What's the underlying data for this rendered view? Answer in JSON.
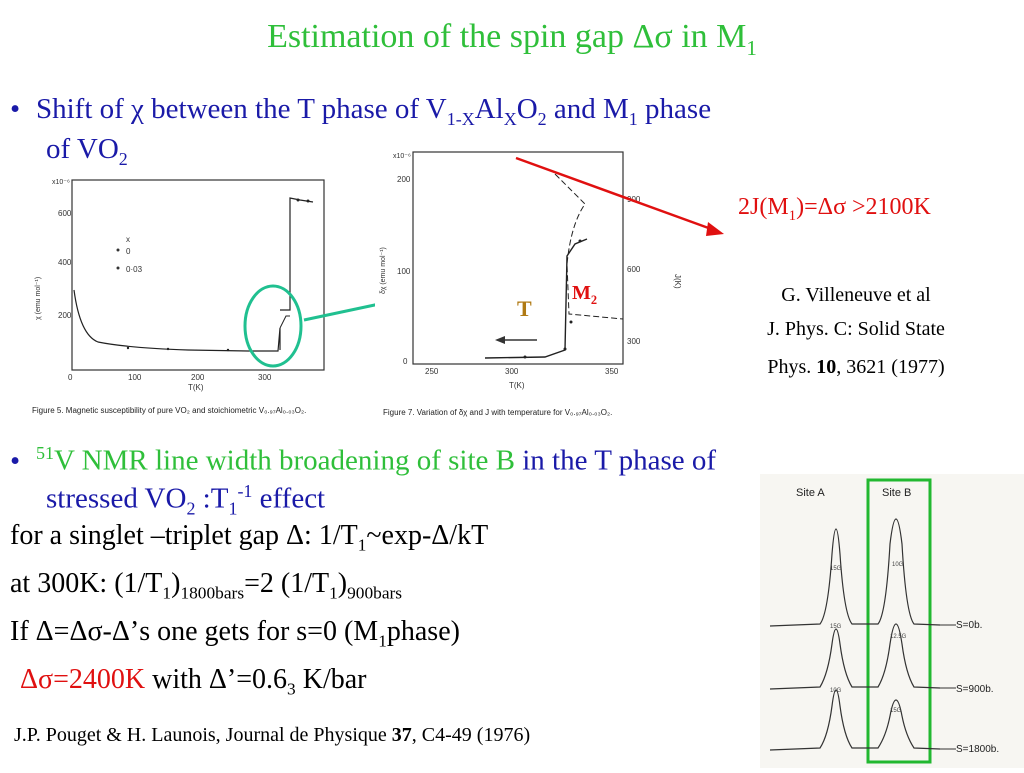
{
  "title": {
    "pre": "Estimation of the spin gap Δσ in M",
    "sub": "1"
  },
  "bullet_dot": "•",
  "bullet1": {
    "a": "Shift of χ between  the T phase of V",
    "sub1": "1-X",
    "b": "Al",
    "sub2": "X",
    "c": "O",
    "sub3": "2",
    "d": " and M",
    "sub4": "1",
    "e": " phase",
    "line2_a": "of  VO",
    "line2_sub": "2"
  },
  "annotation": {
    "a": "2J(M",
    "sub": "1",
    "b": ")=Δσ >2100K"
  },
  "fig1": {
    "y_unit": "x10⁻⁶",
    "y_ticks": [
      "600",
      "400",
      "200"
    ],
    "x_ticks": [
      "0",
      "100",
      "200",
      "300"
    ],
    "xlabel": "T(K)",
    "ylabel": "χ (emu mol⁻¹)",
    "legend": {
      "head": "x",
      "r1": "0",
      "r2": "0·03"
    },
    "caption": "Figure 5. Magnetic susceptibility of pure VO₂ and stoichiometric V₀.₉₇Al₀.₀₃O₂."
  },
  "fig2": {
    "y_unit": "x10⁻⁶",
    "y_ticks": [
      "200",
      "100",
      "0"
    ],
    "x_ticks": [
      "250",
      "300",
      "350"
    ],
    "xlabel": "T(K)",
    "ylabel": "δχ (emu mol⁻¹)",
    "right_label": "J(K)",
    "right_ticks": [
      "900",
      "600",
      "300"
    ],
    "label_T": "T",
    "label_M": "M",
    "label_M_sub": "2",
    "caption": "Figure 7. Variation of δχ and J with temperature for V₀.₉₇Al₀.₀₃O₂."
  },
  "reference1": {
    "l1": "G. Villeneuve et al",
    "l2": "J. Phys. C: Solid State",
    "l3a": "Phys. ",
    "l3b": "10",
    "l3c": ", 3621 (1977)"
  },
  "bullet2": {
    "sup": "51",
    "a": "V NMR line width broadening of site B",
    "b": " in the T phase of",
    "l2a": "stressed VO",
    "l2sub": "2",
    "l2b": " :T",
    "l2sub2": "1",
    "l2sup": "-1",
    "l2c": " effect"
  },
  "line_gap": {
    "a": "for a singlet –triplet gap Δ: 1/T",
    "sub": "1",
    "b": "~exp-Δ/kT"
  },
  "line_300": {
    "a": "at 300K: (1/T",
    "s1": "1",
    "b": ")",
    "s2": "1800bars",
    "c": "=2 (1/T",
    "s3": "1",
    "d": ")",
    "s4": "900bars"
  },
  "line_if": {
    "a": "If Δ=Δσ-Δ’s one gets for s=0 (M",
    "sub": "1",
    "b": "phase)"
  },
  "line_result": {
    "red": "Δσ=2400K",
    "a": " with Δ’=0.6",
    "sub": "3",
    "b": " K/bar"
  },
  "reference2": {
    "a": "J.P. Pouget & H. Launois, Journal de Physique ",
    "b": "37",
    "c": ", C4-49 (1976)"
  },
  "nmr": {
    "site_a": "Site A",
    "site_b": "Site B",
    "s1": "S=0b.",
    "s2": "S=900b.",
    "s3": "S=1800b.",
    "lbl": [
      "15G",
      "10G",
      "15G",
      "12.5G",
      "10G",
      "15G"
    ]
  },
  "colors": {
    "title": "#2fbf3a",
    "blue": "#1a1aa8",
    "red": "#e01010",
    "green_box": "#22b830",
    "teal": "#20c090"
  }
}
